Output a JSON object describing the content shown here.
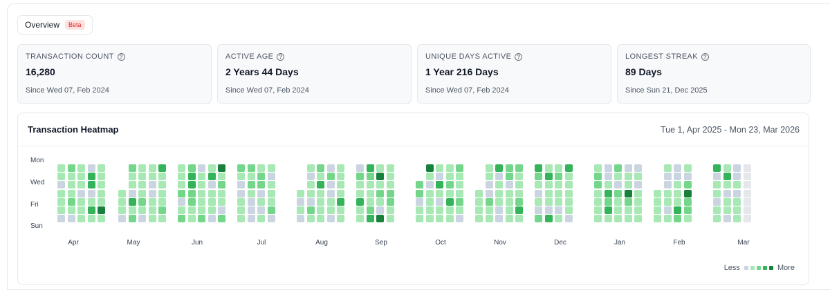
{
  "tabs": {
    "overview_label": "Overview",
    "beta_label": "Beta"
  },
  "stats": [
    {
      "label": "TRANSACTION COUNT",
      "value": "16,280",
      "sub": "Since Wed 07, Feb 2024"
    },
    {
      "label": "ACTIVE AGE",
      "value": "2 Years 44 Days",
      "sub": "Since Wed 07, Feb 2024"
    },
    {
      "label": "UNIQUE DAYS ACTIVE",
      "value": "1 Year 216 Days",
      "sub": "Since Wed 07, Feb 2024"
    },
    {
      "label": "LONGEST STREAK",
      "value": "89 Days",
      "sub": "Since Sun 21, Dec 2025"
    }
  ],
  "heatmap": {
    "title": "Transaction Heatmap",
    "range": "Tue 1, Apr 2025 - Mon 23, Mar 2026",
    "day_labels": [
      "Mon",
      "Wed",
      "Fri",
      "Sun"
    ],
    "months": [
      "Apr",
      "May",
      "Jun",
      "Jul",
      "Aug",
      "Sep",
      "Oct",
      "Nov",
      "Dec",
      "Jan",
      "Feb",
      "Mar"
    ],
    "legend_less": "Less",
    "legend_more": "More",
    "colors": [
      "#cbd5e1",
      "#a7e8b4",
      "#74d68a",
      "#34b35a",
      "#17813c"
    ]
  }
}
